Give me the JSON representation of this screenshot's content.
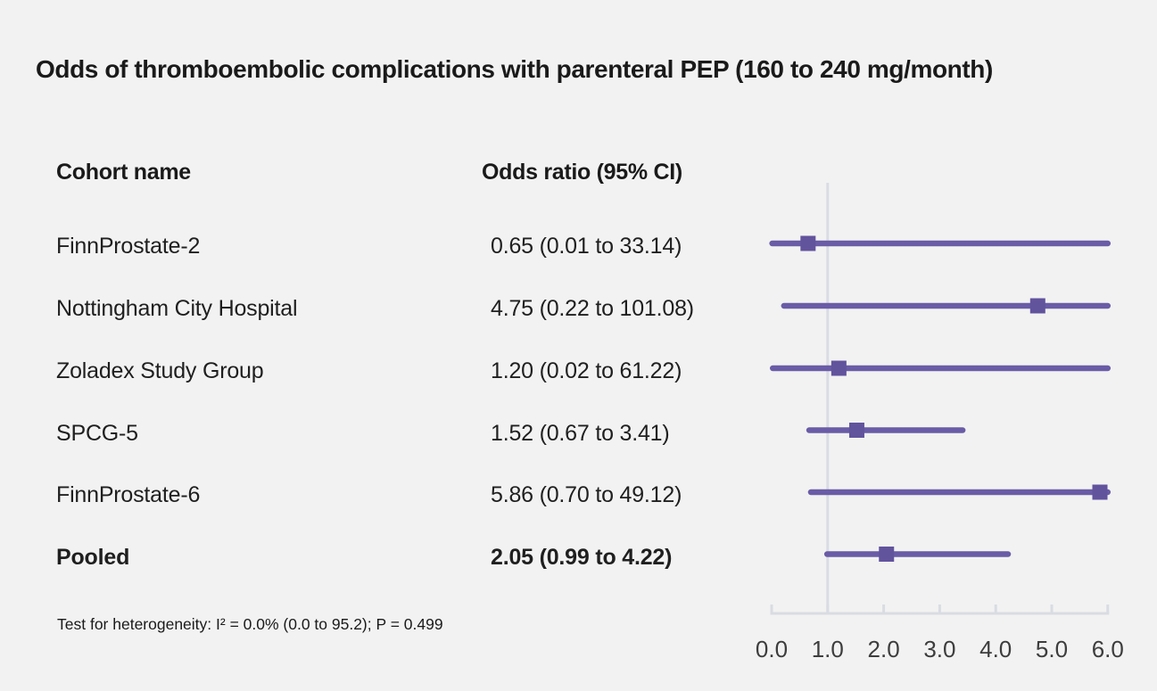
{
  "title": "Odds of thromboembolic complications with parenteral PEP (160 to 240 mg/month)",
  "columns": {
    "cohort": "Cohort name",
    "odds_ratio": "Odds ratio (95% CI)"
  },
  "footnote": "Test for heterogeneity: I² = 0.0% (0.0 to 95.2); P = 0.499",
  "colors": {
    "background": "#f2f2f2",
    "ci_line": "#6a5ca6",
    "marker": "#62539d",
    "axis_line": "#d9dce3",
    "tick_text": "#3d3d3d",
    "text": "#1f1f1f"
  },
  "chart_data": {
    "type": "forest",
    "title": "Odds of thromboembolic complications with parenteral PEP (160 to 240 mg/month)",
    "xlabel": "",
    "ylabel": "",
    "xlim": [
      0,
      6
    ],
    "reference_line": 1.0,
    "tick_labels": [
      "0.0",
      "1.0",
      "2.0",
      "3.0",
      "4.0",
      "5.0",
      "6.0"
    ],
    "tick_values": [
      0,
      1,
      2,
      3,
      4,
      5,
      6
    ],
    "grid": false,
    "marker_shape": "square",
    "rows": [
      {
        "label": "FinnProstate-2",
        "or": 0.65,
        "ci_low": 0.01,
        "ci_high": 33.14,
        "display": "0.65 (0.01 to 33.14)",
        "bold": false
      },
      {
        "label": "Nottingham City Hospital",
        "or": 4.75,
        "ci_low": 0.22,
        "ci_high": 101.08,
        "display": "4.75 (0.22 to 101.08)",
        "bold": false
      },
      {
        "label": "Zoladex Study Group",
        "or": 1.2,
        "ci_low": 0.02,
        "ci_high": 61.22,
        "display": "1.20 (0.02 to 61.22)",
        "bold": false
      },
      {
        "label": "SPCG-5",
        "or": 1.52,
        "ci_low": 0.67,
        "ci_high": 3.41,
        "display": "1.52 (0.67 to 3.41)",
        "bold": false
      },
      {
        "label": "FinnProstate-6",
        "or": 5.86,
        "ci_low": 0.7,
        "ci_high": 49.12,
        "display": "5.86 (0.70 to 49.12)",
        "bold": false
      },
      {
        "label": "Pooled",
        "or": 2.05,
        "ci_low": 0.99,
        "ci_high": 4.22,
        "display": "2.05 (0.99 to 4.22)",
        "bold": true
      }
    ],
    "heterogeneity_note": "Test for heterogeneity: I² = 0.0% (0.0 to 95.2); P = 0.499"
  }
}
